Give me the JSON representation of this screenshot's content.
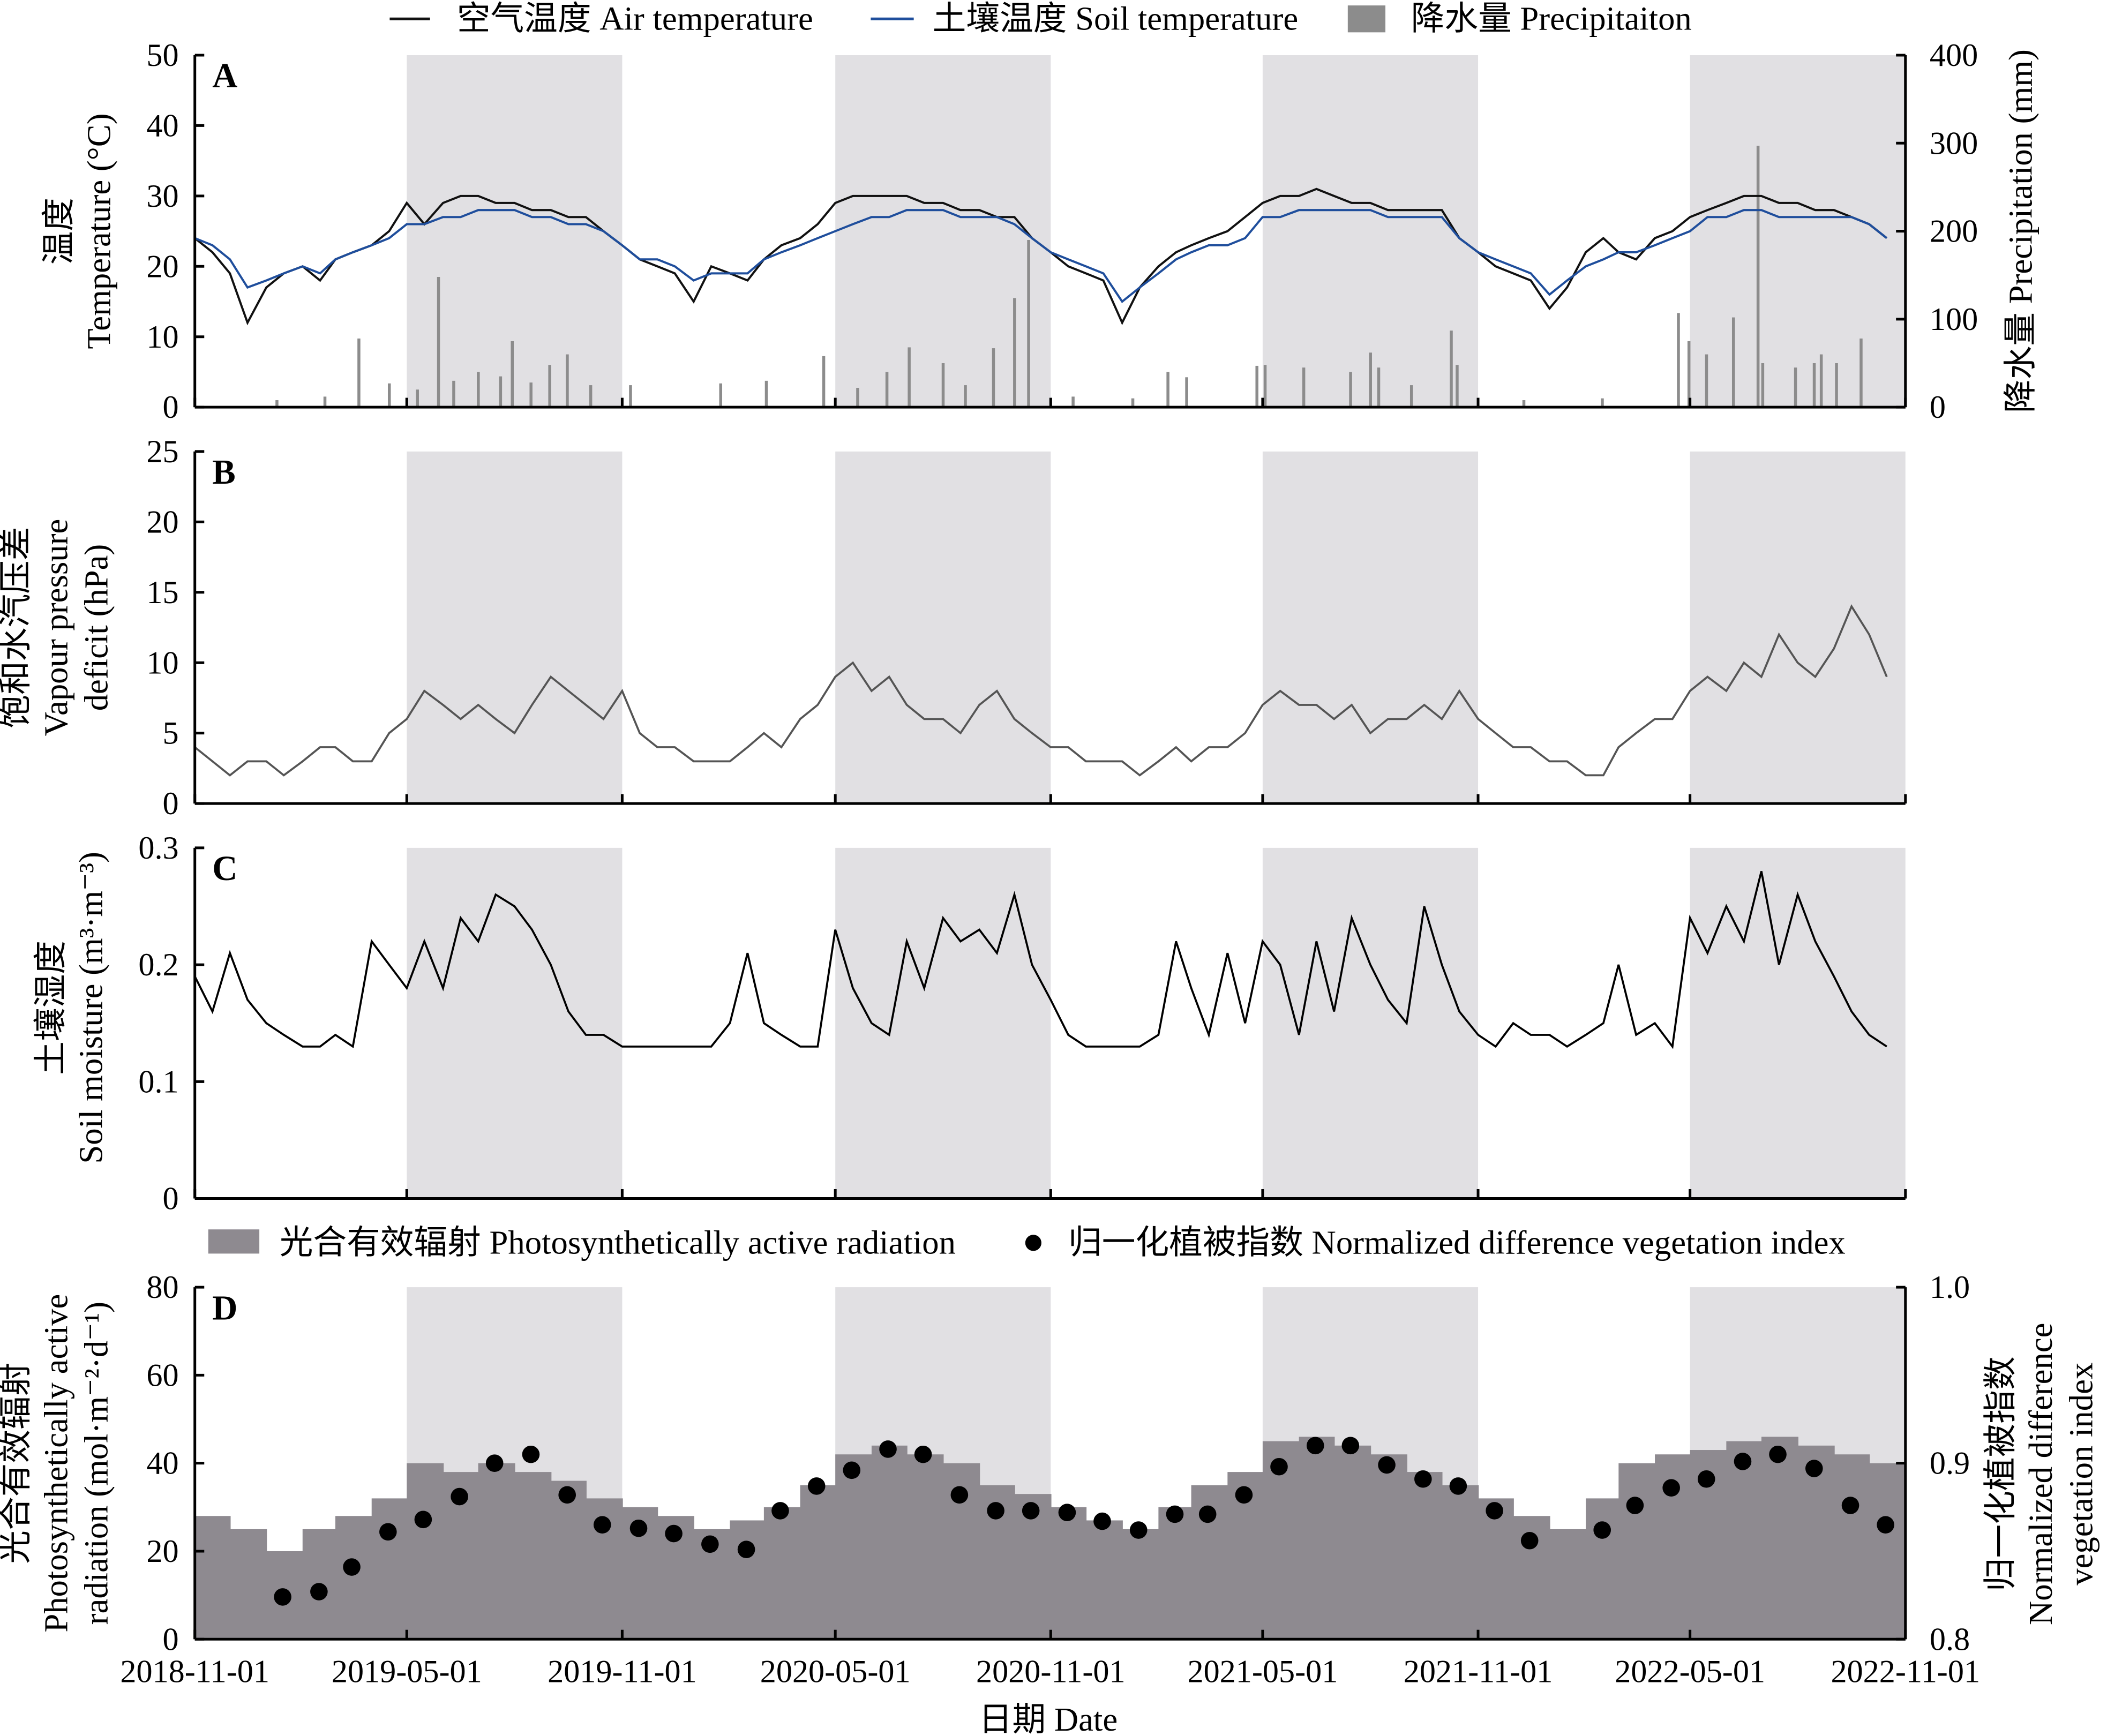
{
  "x_axis": {
    "label": "日期 Date",
    "range": [
      "2018-11-01",
      "2022-11-01"
    ],
    "ticks": [
      "2018-11-01",
      "2019-05-01",
      "2019-11-01",
      "2020-05-01",
      "2020-11-01",
      "2021-05-01",
      "2021-11-01",
      "2022-05-01",
      "2022-11-01"
    ]
  },
  "shaded_periods": [
    [
      "2019-05-01",
      "2019-11-01"
    ],
    [
      "2020-05-01",
      "2020-11-01"
    ],
    [
      "2021-05-01",
      "2021-11-01"
    ],
    [
      "2022-05-01",
      "2022-11-01"
    ]
  ],
  "colors": {
    "air": "#111111",
    "soil": "#1f4e9c",
    "precip": "#8c8c8c",
    "vpd": "#555555",
    "sm": "#000000",
    "par": "#8e8a90",
    "ndvi": "#000000",
    "shade": "#e1e0e3"
  },
  "legend_top": {
    "air": "空气温度 Air temperature",
    "soil": "土壤温度 Soil temperature",
    "precip": "降水量 Precipitaiton"
  },
  "legend_d": {
    "par": "光合有效辐射 Photosynthetically active radiation",
    "ndvi": "归一化植被指数 Normalized difference vegetation index"
  },
  "chart_data": [
    {
      "type": "line",
      "panel_label": "A",
      "ylabel": [
        "温度",
        "Temperature (°C)"
      ],
      "ylim": [
        0,
        50
      ],
      "yticks": [
        "0",
        "10",
        "20",
        "30",
        "40",
        "50"
      ],
      "y2label": "降水量 Precipitation (mm)",
      "y2lim": [
        0,
        400
      ],
      "y2ticks": [
        "0",
        "100",
        "200",
        "300",
        "400"
      ],
      "sampling": "semi-monthly (1st and 16th of each month, from 2018-11-01)",
      "series": [
        {
          "name": "空气温度 Air temperature",
          "values": [
            24,
            22,
            19,
            12,
            17,
            19,
            20,
            18,
            21,
            22,
            23,
            25,
            29,
            26,
            29,
            30,
            30,
            29,
            29,
            28,
            28,
            27,
            27,
            25,
            23,
            21,
            20,
            19,
            15,
            20,
            19,
            18,
            21,
            23,
            24,
            26,
            29,
            30,
            30,
            30,
            30,
            29,
            29,
            28,
            28,
            27,
            27,
            24,
            22,
            20,
            19,
            18,
            12,
            17,
            20,
            22,
            23,
            24,
            25,
            27,
            29,
            30,
            30,
            31,
            30,
            29,
            29,
            28,
            28,
            28,
            28,
            24,
            22,
            20,
            19,
            18,
            14,
            17,
            22,
            24,
            22,
            21,
            24,
            25,
            27,
            28,
            29,
            30,
            30,
            29,
            29,
            28,
            28,
            27,
            26,
            24
          ]
        },
        {
          "name": "土壤温度 Soil temperature",
          "values": [
            24,
            23,
            21,
            17,
            18,
            19,
            20,
            19,
            21,
            22,
            23,
            24,
            26,
            26,
            27,
            27,
            28,
            28,
            28,
            27,
            27,
            26,
            26,
            25,
            23,
            21,
            21,
            20,
            18,
            19,
            19,
            19,
            21,
            22,
            23,
            24,
            25,
            26,
            27,
            27,
            28,
            28,
            28,
            27,
            27,
            27,
            26,
            24,
            22,
            21,
            20,
            19,
            15,
            17,
            19,
            21,
            22,
            23,
            23,
            24,
            27,
            27,
            28,
            28,
            28,
            28,
            28,
            27,
            27,
            27,
            27,
            24,
            22,
            21,
            20,
            19,
            16,
            18,
            20,
            21,
            22,
            22,
            23,
            24,
            25,
            27,
            27,
            28,
            28,
            27,
            27,
            27,
            27,
            27,
            26,
            24
          ]
        }
      ],
      "precip_events": [
        [
          "2019-01-10",
          8
        ],
        [
          "2019-02-20",
          12
        ],
        [
          "2019-03-21",
          78
        ],
        [
          "2019-04-16",
          27
        ],
        [
          "2019-05-10",
          20
        ],
        [
          "2019-05-28",
          148
        ],
        [
          "2019-06-10",
          30
        ],
        [
          "2019-07-01",
          40
        ],
        [
          "2019-07-20",
          35
        ],
        [
          "2019-07-30",
          75
        ],
        [
          "2019-08-15",
          28
        ],
        [
          "2019-08-31",
          48
        ],
        [
          "2019-09-15",
          60
        ],
        [
          "2019-10-05",
          25
        ],
        [
          "2019-11-08",
          25
        ],
        [
          "2020-01-24",
          27
        ],
        [
          "2020-03-03",
          30
        ],
        [
          "2020-04-21",
          58
        ],
        [
          "2020-05-20",
          22
        ],
        [
          "2020-06-14",
          40
        ],
        [
          "2020-07-03",
          68
        ],
        [
          "2020-08-01",
          50
        ],
        [
          "2020-08-20",
          25
        ],
        [
          "2020-09-13",
          67
        ],
        [
          "2020-10-01",
          124
        ],
        [
          "2020-10-13",
          190
        ],
        [
          "2020-11-20",
          12
        ],
        [
          "2021-01-10",
          10
        ],
        [
          "2021-02-09",
          40
        ],
        [
          "2021-02-25",
          34
        ],
        [
          "2021-04-26",
          47
        ],
        [
          "2021-05-03",
          48
        ],
        [
          "2021-06-05",
          45
        ],
        [
          "2021-07-15",
          40
        ],
        [
          "2021-08-01",
          62
        ],
        [
          "2021-08-08",
          45
        ],
        [
          "2021-09-05",
          25
        ],
        [
          "2021-10-09",
          87
        ],
        [
          "2021-10-14",
          48
        ],
        [
          "2021-12-10",
          8
        ],
        [
          "2022-02-15",
          10
        ],
        [
          "2022-04-21",
          107
        ],
        [
          "2022-04-30",
          75
        ],
        [
          "2022-05-15",
          60
        ],
        [
          "2022-06-07",
          102
        ],
        [
          "2022-06-28",
          297
        ],
        [
          "2022-07-02",
          50
        ],
        [
          "2022-07-30",
          45
        ],
        [
          "2022-08-15",
          50
        ],
        [
          "2022-08-21",
          60
        ],
        [
          "2022-09-03",
          50
        ],
        [
          "2022-09-24",
          78
        ]
      ]
    },
    {
      "type": "line",
      "panel_label": "B",
      "ylabel": [
        "饱和水汽压差",
        "Vapour pressure",
        "deficit (hPa)"
      ],
      "ylim": [
        0,
        25
      ],
      "yticks": [
        "0",
        "5",
        "10",
        "15",
        "20",
        "25"
      ],
      "sampling": "semi-monthly (1st and 16th of each month, from 2018-11-01)",
      "series": [
        {
          "name": "Vapour pressure deficit",
          "values": [
            4,
            3,
            2,
            3,
            3,
            2,
            3,
            4,
            4,
            3,
            3,
            5,
            6,
            8,
            7,
            6,
            7,
            6,
            5,
            7,
            9,
            8,
            7,
            6,
            8,
            5,
            4,
            4,
            3,
            3,
            3,
            4,
            5,
            4,
            6,
            7,
            9,
            10,
            8,
            9,
            7,
            6,
            6,
            5,
            7,
            8,
            6,
            5,
            4,
            4,
            3,
            3,
            3,
            2,
            3,
            4,
            3,
            4,
            4,
            5,
            7,
            8,
            7,
            7,
            6,
            7,
            5,
            6,
            6,
            7,
            6,
            8,
            6,
            5,
            4,
            4,
            3,
            3,
            2,
            2,
            4,
            5,
            6,
            6,
            8,
            9,
            8,
            10,
            9,
            12,
            10,
            9,
            11,
            14,
            12,
            9
          ]
        }
      ]
    },
    {
      "type": "line",
      "panel_label": "C",
      "ylabel": [
        "土壤湿度",
        "Soil moisture (m³·m⁻³)"
      ],
      "ylim": [
        0,
        0.3
      ],
      "yticks": [
        "0",
        "0.1",
        "0.2",
        "0.3"
      ],
      "sampling": "semi-monthly (1st and 16th of each month, from 2018-11-01)",
      "series": [
        {
          "name": "Soil moisture",
          "values": [
            0.19,
            0.16,
            0.21,
            0.17,
            0.15,
            0.14,
            0.13,
            0.13,
            0.14,
            0.13,
            0.22,
            0.2,
            0.18,
            0.22,
            0.18,
            0.24,
            0.22,
            0.26,
            0.25,
            0.23,
            0.2,
            0.16,
            0.14,
            0.14,
            0.13,
            0.13,
            0.13,
            0.13,
            0.13,
            0.13,
            0.15,
            0.21,
            0.15,
            0.14,
            0.13,
            0.13,
            0.23,
            0.18,
            0.15,
            0.14,
            0.22,
            0.18,
            0.24,
            0.22,
            0.23,
            0.21,
            0.26,
            0.2,
            0.17,
            0.14,
            0.13,
            0.13,
            0.13,
            0.13,
            0.14,
            0.22,
            0.18,
            0.14,
            0.21,
            0.15,
            0.22,
            0.2,
            0.14,
            0.22,
            0.16,
            0.24,
            0.2,
            0.17,
            0.15,
            0.25,
            0.2,
            0.16,
            0.14,
            0.13,
            0.15,
            0.14,
            0.14,
            0.13,
            0.14,
            0.15,
            0.2,
            0.14,
            0.15,
            0.13,
            0.24,
            0.21,
            0.25,
            0.22,
            0.28,
            0.2,
            0.26,
            0.22,
            0.19,
            0.16,
            0.14,
            0.13
          ]
        }
      ]
    },
    {
      "type": "bar+scatter",
      "panel_label": "D",
      "ylabel": [
        "光合有效辐射",
        "Photosynthetically active",
        "radiation (mol·m⁻²·d⁻¹)"
      ],
      "ylim": [
        0,
        80
      ],
      "yticks": [
        "0",
        "20",
        "40",
        "60",
        "80"
      ],
      "y2label": [
        "归一化植被指数",
        "Normalized difference",
        "vegetation index"
      ],
      "y2lim": [
        0.8,
        1.0
      ],
      "y2ticks": [
        "0.8",
        "0.9",
        "1.0"
      ],
      "par_sampling": "monthly (from 2018-11)",
      "par": [
        28,
        25,
        20,
        25,
        28,
        32,
        40,
        38,
        40,
        38,
        36,
        32,
        30,
        28,
        25,
        27,
        30,
        35,
        42,
        44,
        42,
        40,
        35,
        33,
        30,
        27,
        25,
        30,
        35,
        38,
        45,
        46,
        44,
        42,
        38,
        35,
        32,
        28,
        25,
        32,
        40,
        42,
        43,
        45,
        46,
        44,
        42,
        40
      ],
      "ndvi": [
        [
          "2019-01-15",
          0.824
        ],
        [
          "2019-02-15",
          0.827
        ],
        [
          "2019-03-15",
          0.841
        ],
        [
          "2019-04-15",
          0.861
        ],
        [
          "2019-05-15",
          0.868
        ],
        [
          "2019-06-15",
          0.881
        ],
        [
          "2019-07-15",
          0.9
        ],
        [
          "2019-08-15",
          0.905
        ],
        [
          "2019-09-15",
          0.882
        ],
        [
          "2019-10-15",
          0.865
        ],
        [
          "2019-11-15",
          0.863
        ],
        [
          "2019-12-15",
          0.86
        ],
        [
          "2020-01-15",
          0.854
        ],
        [
          "2020-02-15",
          0.851
        ],
        [
          "2020-03-15",
          0.873
        ],
        [
          "2020-04-15",
          0.887
        ],
        [
          "2020-05-15",
          0.896
        ],
        [
          "2020-06-15",
          0.908
        ],
        [
          "2020-07-15",
          0.905
        ],
        [
          "2020-08-15",
          0.882
        ],
        [
          "2020-09-15",
          0.873
        ],
        [
          "2020-10-15",
          0.873
        ],
        [
          "2020-11-15",
          0.872
        ],
        [
          "2020-12-15",
          0.867
        ],
        [
          "2021-01-15",
          0.862
        ],
        [
          "2021-02-15",
          0.871
        ],
        [
          "2021-03-15",
          0.871
        ],
        [
          "2021-04-15",
          0.882
        ],
        [
          "2021-05-15",
          0.898
        ],
        [
          "2021-06-15",
          0.91
        ],
        [
          "2021-07-15",
          0.91
        ],
        [
          "2021-08-15",
          0.899
        ],
        [
          "2021-09-15",
          0.891
        ],
        [
          "2021-10-15",
          0.887
        ],
        [
          "2021-11-15",
          0.873
        ],
        [
          "2021-12-15",
          0.856
        ],
        [
          "2022-02-15",
          0.862
        ],
        [
          "2022-03-15",
          0.876
        ],
        [
          "2022-04-15",
          0.886
        ],
        [
          "2022-05-15",
          0.891
        ],
        [
          "2022-06-15",
          0.901
        ],
        [
          "2022-07-15",
          0.905
        ],
        [
          "2022-08-15",
          0.897
        ],
        [
          "2022-09-15",
          0.876
        ],
        [
          "2022-10-15",
          0.865
        ]
      ]
    }
  ]
}
